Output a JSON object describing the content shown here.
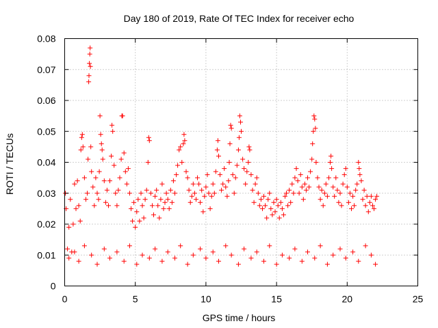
{
  "chart_data": {
    "type": "scatter",
    "title": "Day 180 of 2019, Rate Of TEC Index for receiver echo",
    "xlabel": "GPS time / hours",
    "ylabel": "ROTI / TECUs",
    "xlim": [
      0,
      25
    ],
    "ylim": [
      0,
      0.08
    ],
    "x_ticks": [
      0,
      5,
      10,
      15,
      20,
      25
    ],
    "x_tick_labels": [
      "0",
      "5",
      "10",
      "15",
      "20",
      "25"
    ],
    "y_ticks": [
      0,
      0.01,
      0.02,
      0.03,
      0.04,
      0.05,
      0.06,
      0.07,
      0.08
    ],
    "y_tick_labels": [
      "0",
      "0.01",
      "0.02",
      "0.03",
      "0.04",
      "0.05",
      "0.06",
      "0.07",
      "0.08"
    ],
    "grid": true,
    "marker": "+",
    "color": "#ff0000",
    "data_range_x": [
      0,
      22.1
    ],
    "series": [
      {
        "name": "",
        "points": [
          [
            0.05,
            0.03
          ],
          [
            0.1,
            0.025
          ],
          [
            0.2,
            0.012
          ],
          [
            0.3,
            0.019
          ],
          [
            0.4,
            0.028
          ],
          [
            0.5,
            0.011
          ],
          [
            0.6,
            0.02
          ],
          [
            0.7,
            0.033
          ],
          [
            0.8,
            0.025
          ],
          [
            0.9,
            0.034
          ],
          [
            1.0,
            0.026
          ],
          [
            1.1,
            0.021
          ],
          [
            1.15,
            0.044
          ],
          [
            1.2,
            0.048
          ],
          [
            1.25,
            0.049
          ],
          [
            1.3,
            0.045
          ],
          [
            1.4,
            0.035
          ],
          [
            1.5,
            0.028
          ],
          [
            1.6,
            0.03
          ],
          [
            1.65,
            0.041
          ],
          [
            1.7,
            0.066
          ],
          [
            1.72,
            0.068
          ],
          [
            1.75,
            0.072
          ],
          [
            1.78,
            0.075
          ],
          [
            1.8,
            0.077
          ],
          [
            1.82,
            0.071
          ],
          [
            1.85,
            0.045
          ],
          [
            1.9,
            0.037
          ],
          [
            2.0,
            0.032
          ],
          [
            2.1,
            0.026
          ],
          [
            2.2,
            0.035
          ],
          [
            2.3,
            0.03
          ],
          [
            2.4,
            0.028
          ],
          [
            2.45,
            0.037
          ],
          [
            2.5,
            0.055
          ],
          [
            2.55,
            0.049
          ],
          [
            2.6,
            0.046
          ],
          [
            2.65,
            0.044
          ],
          [
            2.7,
            0.041
          ],
          [
            2.8,
            0.034
          ],
          [
            2.9,
            0.027
          ],
          [
            3.0,
            0.031
          ],
          [
            3.1,
            0.026
          ],
          [
            3.2,
            0.034
          ],
          [
            3.3,
            0.042
          ],
          [
            3.35,
            0.052
          ],
          [
            3.4,
            0.05
          ],
          [
            3.5,
            0.039
          ],
          [
            3.6,
            0.03
          ],
          [
            3.7,
            0.026
          ],
          [
            3.8,
            0.031
          ],
          [
            3.9,
            0.035
          ],
          [
            4.0,
            0.041
          ],
          [
            4.05,
            0.055
          ],
          [
            4.1,
            0.055
          ],
          [
            4.2,
            0.043
          ],
          [
            4.3,
            0.037
          ],
          [
            4.4,
            0.033
          ],
          [
            4.5,
            0.038
          ],
          [
            4.6,
            0.03
          ],
          [
            4.7,
            0.025
          ],
          [
            4.8,
            0.021
          ],
          [
            4.9,
            0.027
          ],
          [
            5.0,
            0.019
          ],
          [
            5.1,
            0.024
          ],
          [
            5.2,
            0.028
          ],
          [
            5.3,
            0.021
          ],
          [
            5.4,
            0.03
          ],
          [
            5.5,
            0.026
          ],
          [
            5.6,
            0.022
          ],
          [
            5.7,
            0.028
          ],
          [
            5.8,
            0.031
          ],
          [
            5.9,
            0.04
          ],
          [
            5.95,
            0.048
          ],
          [
            6.0,
            0.047
          ],
          [
            6.1,
            0.03
          ],
          [
            6.2,
            0.026
          ],
          [
            6.3,
            0.023
          ],
          [
            6.4,
            0.029
          ],
          [
            6.5,
            0.031
          ],
          [
            6.6,
            0.026
          ],
          [
            6.7,
            0.022
          ],
          [
            6.8,
            0.028
          ],
          [
            6.9,
            0.033
          ],
          [
            7.0,
            0.025
          ],
          [
            7.1,
            0.027
          ],
          [
            7.2,
            0.03
          ],
          [
            7.3,
            0.028
          ],
          [
            7.4,
            0.025
          ],
          [
            7.5,
            0.031
          ],
          [
            7.6,
            0.027
          ],
          [
            7.7,
            0.034
          ],
          [
            7.8,
            0.03
          ],
          [
            7.9,
            0.036
          ],
          [
            8.0,
            0.039
          ],
          [
            8.1,
            0.044
          ],
          [
            8.2,
            0.045
          ],
          [
            8.3,
            0.04
          ],
          [
            8.4,
            0.046
          ],
          [
            8.45,
            0.049
          ],
          [
            8.5,
            0.047
          ],
          [
            8.6,
            0.037
          ],
          [
            8.7,
            0.035
          ],
          [
            8.8,
            0.031
          ],
          [
            8.9,
            0.027
          ],
          [
            9.0,
            0.029
          ],
          [
            9.1,
            0.033
          ],
          [
            9.2,
            0.03
          ],
          [
            9.3,
            0.028
          ],
          [
            9.4,
            0.035
          ],
          [
            9.5,
            0.033
          ],
          [
            9.6,
            0.027
          ],
          [
            9.7,
            0.031
          ],
          [
            9.8,
            0.024
          ],
          [
            9.9,
            0.029
          ],
          [
            10.0,
            0.032
          ],
          [
            10.1,
            0.036
          ],
          [
            10.2,
            0.03
          ],
          [
            10.3,
            0.025
          ],
          [
            10.4,
            0.029
          ],
          [
            10.5,
            0.033
          ],
          [
            10.6,
            0.03
          ],
          [
            10.7,
            0.037
          ],
          [
            10.8,
            0.044
          ],
          [
            10.85,
            0.047
          ],
          [
            10.9,
            0.042
          ],
          [
            11.0,
            0.036
          ],
          [
            11.1,
            0.031
          ],
          [
            11.2,
            0.033
          ],
          [
            11.3,
            0.038
          ],
          [
            11.4,
            0.032
          ],
          [
            11.5,
            0.029
          ],
          [
            11.6,
            0.034
          ],
          [
            11.65,
            0.04
          ],
          [
            11.7,
            0.046
          ],
          [
            11.75,
            0.052
          ],
          [
            11.8,
            0.051
          ],
          [
            11.9,
            0.036
          ],
          [
            12.0,
            0.03
          ],
          [
            12.1,
            0.035
          ],
          [
            12.2,
            0.039
          ],
          [
            12.3,
            0.044
          ],
          [
            12.35,
            0.048
          ],
          [
            12.4,
            0.055
          ],
          [
            12.45,
            0.053
          ],
          [
            12.5,
            0.05
          ],
          [
            12.6,
            0.041
          ],
          [
            12.7,
            0.038
          ],
          [
            12.8,
            0.033
          ],
          [
            12.9,
            0.037
          ],
          [
            13.0,
            0.04
          ],
          [
            13.05,
            0.045
          ],
          [
            13.1,
            0.044
          ],
          [
            13.2,
            0.036
          ],
          [
            13.3,
            0.031
          ],
          [
            13.4,
            0.027
          ],
          [
            13.5,
            0.033
          ],
          [
            13.6,
            0.035
          ],
          [
            13.7,
            0.03
          ],
          [
            13.8,
            0.026
          ],
          [
            13.9,
            0.028
          ],
          [
            14.0,
            0.025
          ],
          [
            14.1,
            0.029
          ],
          [
            14.2,
            0.026
          ],
          [
            14.3,
            0.022
          ],
          [
            14.4,
            0.028
          ],
          [
            14.5,
            0.03
          ],
          [
            14.6,
            0.025
          ],
          [
            14.7,
            0.023
          ],
          [
            14.8,
            0.027
          ],
          [
            14.9,
            0.024
          ],
          [
            15.0,
            0.028
          ],
          [
            15.1,
            0.026
          ],
          [
            15.2,
            0.022
          ],
          [
            15.3,
            0.027
          ],
          [
            15.4,
            0.025
          ],
          [
            15.5,
            0.023
          ],
          [
            15.6,
            0.029
          ],
          [
            15.7,
            0.03
          ],
          [
            15.8,
            0.026
          ],
          [
            15.9,
            0.031
          ],
          [
            16.0,
            0.027
          ],
          [
            16.1,
            0.033
          ],
          [
            16.2,
            0.03
          ],
          [
            16.3,
            0.035
          ],
          [
            16.4,
            0.038
          ],
          [
            16.5,
            0.034
          ],
          [
            16.6,
            0.03
          ],
          [
            16.7,
            0.036
          ],
          [
            16.8,
            0.032
          ],
          [
            16.9,
            0.028
          ],
          [
            17.0,
            0.033
          ],
          [
            17.1,
            0.031
          ],
          [
            17.2,
            0.035
          ],
          [
            17.3,
            0.032
          ],
          [
            17.4,
            0.037
          ],
          [
            17.5,
            0.041
          ],
          [
            17.55,
            0.046
          ],
          [
            17.6,
            0.05
          ],
          [
            17.65,
            0.055
          ],
          [
            17.7,
            0.054
          ],
          [
            17.75,
            0.051
          ],
          [
            17.8,
            0.04
          ],
          [
            17.9,
            0.035
          ],
          [
            18.0,
            0.032
          ],
          [
            18.1,
            0.028
          ],
          [
            18.2,
            0.031
          ],
          [
            18.3,
            0.026
          ],
          [
            18.4,
            0.03
          ],
          [
            18.5,
            0.033
          ],
          [
            18.6,
            0.029
          ],
          [
            18.7,
            0.035
          ],
          [
            18.8,
            0.04
          ],
          [
            18.85,
            0.042
          ],
          [
            18.9,
            0.038
          ],
          [
            19.0,
            0.032
          ],
          [
            19.1,
            0.029
          ],
          [
            19.2,
            0.035
          ],
          [
            19.3,
            0.031
          ],
          [
            19.4,
            0.027
          ],
          [
            19.5,
            0.03
          ],
          [
            19.6,
            0.026
          ],
          [
            19.7,
            0.033
          ],
          [
            19.8,
            0.036
          ],
          [
            19.9,
            0.038
          ],
          [
            20.0,
            0.032
          ],
          [
            20.1,
            0.027
          ],
          [
            20.2,
            0.03
          ],
          [
            20.3,
            0.025
          ],
          [
            20.4,
            0.029
          ],
          [
            20.5,
            0.026
          ],
          [
            20.6,
            0.031
          ],
          [
            20.7,
            0.033
          ],
          [
            20.8,
            0.04
          ],
          [
            20.85,
            0.038
          ],
          [
            20.9,
            0.036
          ],
          [
            21.0,
            0.034
          ],
          [
            21.1,
            0.028
          ],
          [
            21.2,
            0.031
          ],
          [
            21.3,
            0.026
          ],
          [
            21.4,
            0.029
          ],
          [
            21.5,
            0.024
          ],
          [
            21.6,
            0.027
          ],
          [
            21.7,
            0.029
          ],
          [
            21.8,
            0.026
          ],
          [
            21.9,
            0.025
          ],
          [
            22.0,
            0.028
          ],
          [
            22.1,
            0.029
          ],
          [
            0.3,
            0.009
          ],
          [
            0.7,
            0.011
          ],
          [
            1.0,
            0.008
          ],
          [
            1.4,
            0.013
          ],
          [
            1.9,
            0.01
          ],
          [
            2.3,
            0.007
          ],
          [
            2.8,
            0.012
          ],
          [
            3.2,
            0.009
          ],
          [
            3.7,
            0.011
          ],
          [
            4.2,
            0.008
          ],
          [
            4.6,
            0.013
          ],
          [
            5.1,
            0.007
          ],
          [
            5.5,
            0.01
          ],
          [
            6.0,
            0.009
          ],
          [
            6.4,
            0.012
          ],
          [
            6.9,
            0.008
          ],
          [
            7.3,
            0.011
          ],
          [
            7.8,
            0.009
          ],
          [
            8.2,
            0.013
          ],
          [
            8.7,
            0.007
          ],
          [
            9.1,
            0.01
          ],
          [
            9.6,
            0.012
          ],
          [
            10.0,
            0.009
          ],
          [
            10.5,
            0.011
          ],
          [
            10.9,
            0.008
          ],
          [
            11.4,
            0.013
          ],
          [
            11.8,
            0.01
          ],
          [
            12.3,
            0.007
          ],
          [
            12.7,
            0.012
          ],
          [
            13.2,
            0.009
          ],
          [
            13.6,
            0.011
          ],
          [
            14.1,
            0.008
          ],
          [
            14.5,
            0.013
          ],
          [
            15.0,
            0.007
          ],
          [
            15.4,
            0.01
          ],
          [
            15.9,
            0.009
          ],
          [
            16.3,
            0.012
          ],
          [
            16.8,
            0.008
          ],
          [
            17.2,
            0.011
          ],
          [
            17.7,
            0.009
          ],
          [
            18.1,
            0.013
          ],
          [
            18.6,
            0.007
          ],
          [
            19.0,
            0.01
          ],
          [
            19.5,
            0.012
          ],
          [
            19.9,
            0.009
          ],
          [
            20.4,
            0.011
          ],
          [
            20.8,
            0.008
          ],
          [
            21.3,
            0.013
          ],
          [
            21.7,
            0.01
          ],
          [
            22.0,
            0.007
          ]
        ]
      }
    ]
  }
}
